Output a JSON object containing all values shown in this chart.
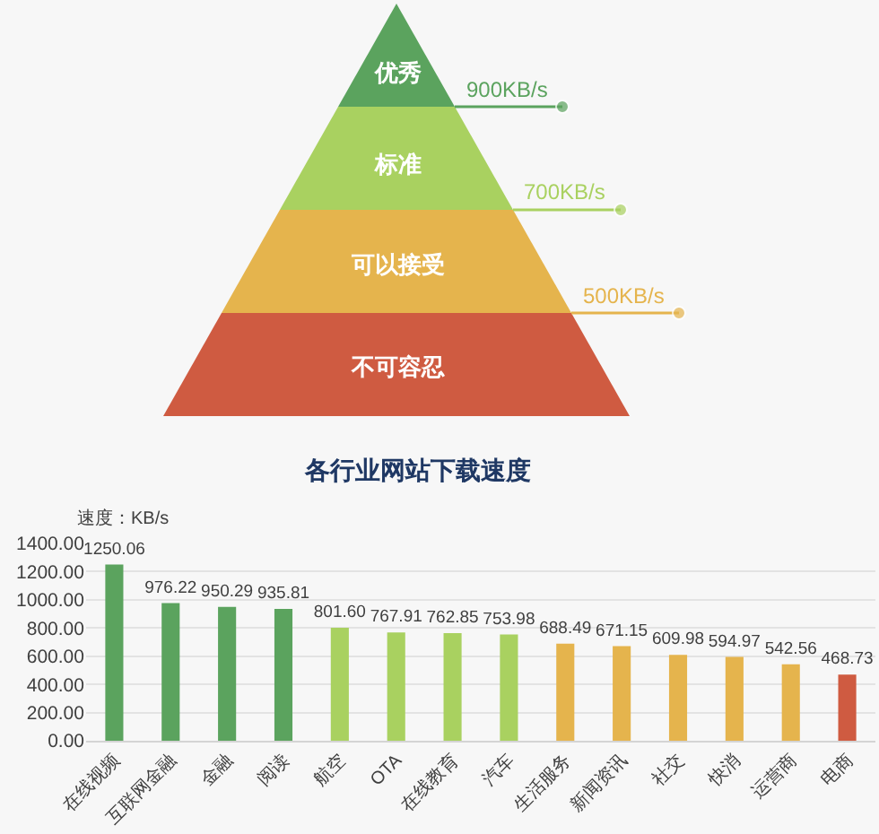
{
  "chart_data": [
    {
      "type": "other",
      "categories": [
        "优秀",
        "标准",
        "可以接受",
        "不可容忍"
      ],
      "colors": [
        "#5ba35e",
        "#a9d160",
        "#e5b44d",
        "#cf5b41"
      ],
      "annotations": [
        "900KB/s",
        "700KB/s",
        "500KB/s"
      ]
    },
    {
      "type": "bar",
      "title": "各行业网站下载速度",
      "ylabel": "速度：KB/s",
      "categories": [
        "在线视频",
        "互联网金融",
        "金融",
        "阅读",
        "航空",
        "OTA",
        "在线教育",
        "汽车",
        "生活服务",
        "新闻资讯",
        "社交",
        "快消",
        "运营商",
        "电商"
      ],
      "values": [
        1250.06,
        976.22,
        950.29,
        935.81,
        801.6,
        767.91,
        762.85,
        753.98,
        688.49,
        671.15,
        609.98,
        594.97,
        542.56,
        468.73
      ],
      "value_labels": [
        "1250.06",
        "976.22",
        "950.29",
        "935.81",
        "801.60",
        "767.91",
        "762.85",
        "753.98",
        "688.49",
        "671.15",
        "609.98",
        "594.97",
        "542.56",
        "468.73"
      ],
      "colors": [
        "#5ba35e",
        "#5ba35e",
        "#5ba35e",
        "#5ba35e",
        "#a9d160",
        "#a9d160",
        "#a9d160",
        "#a9d160",
        "#e5b44d",
        "#e5b44d",
        "#e5b44d",
        "#e5b44d",
        "#e5b44d",
        "#cf5b41"
      ],
      "ylim": [
        0,
        1400
      ],
      "yticks": [
        {
          "value": 0,
          "label": "0.00"
        },
        {
          "value": 200,
          "label": "200.00"
        },
        {
          "value": 400,
          "label": "400.00"
        },
        {
          "value": 600,
          "label": "600.00"
        },
        {
          "value": 800,
          "label": "800.00"
        },
        {
          "value": 1000,
          "label": "1000.00"
        },
        {
          "value": 1200,
          "label": "1200.00"
        },
        {
          "value": 1400,
          "label": "1400.00"
        }
      ],
      "grid": "y"
    }
  ]
}
